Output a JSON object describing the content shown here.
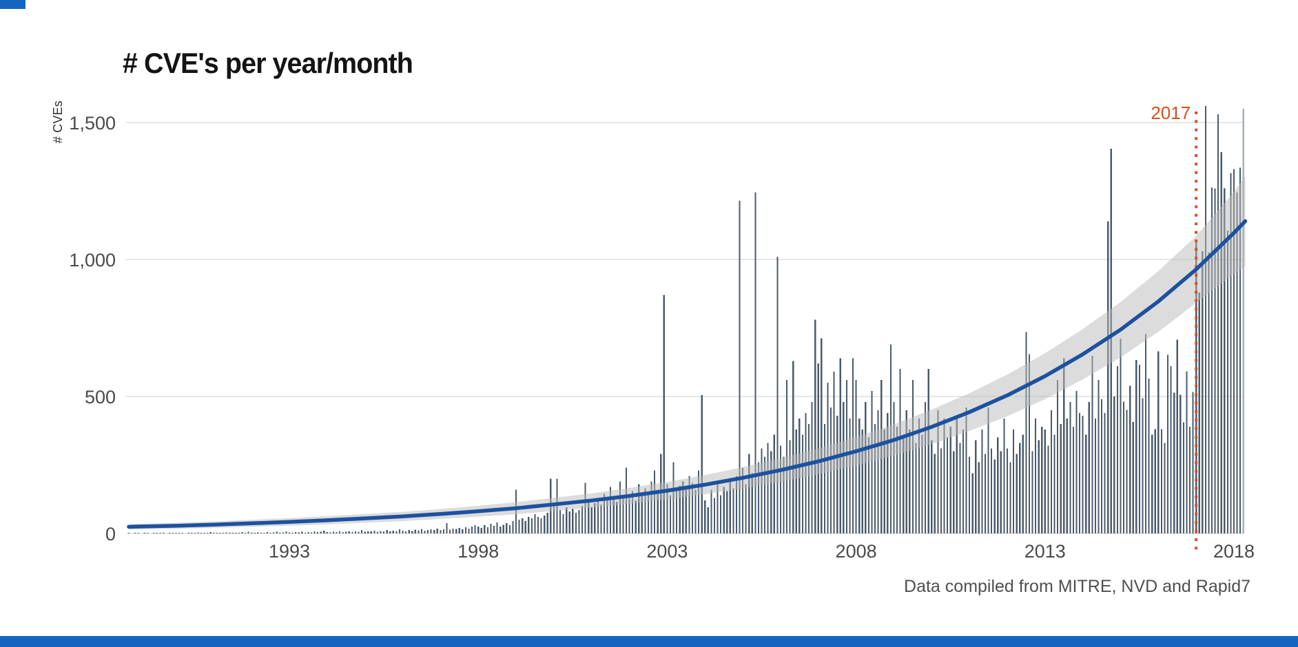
{
  "page": {
    "background": "#ffffff",
    "brand_color": "#1565c0"
  },
  "chart_data": {
    "type": "bar",
    "title": "# CVE's per year/month",
    "ylabel": "# CVEs",
    "xlabel": "",
    "caption": "Data compiled from MITRE, NVD and Rapid7",
    "grid": true,
    "legend_position": "none",
    "xlim": [
      1988.58,
      2018.45
    ],
    "ylim": [
      0,
      1580
    ],
    "x_tick_years": [
      1993,
      1998,
      2003,
      2008,
      2013,
      2018
    ],
    "y_ticks": [
      {
        "value": 0,
        "label": "0"
      },
      {
        "value": 500,
        "label": "500"
      },
      {
        "value": 1000,
        "label": "1,000"
      },
      {
        "value": 1500,
        "label": "1,500"
      }
    ],
    "grid_color": "#d8d8d8",
    "tick_label_color": "#4a4a4a",
    "bar_color": "#4a5a6b",
    "bar_partial_color": "#a5b1bb",
    "annotation": {
      "label": "2017",
      "year": 2017,
      "color": "#d94f1e",
      "style": "vertical-dotted-line"
    },
    "bars": {
      "unit": "CVEs per month",
      "start": "1988-10",
      "end": "2018-04",
      "note": "last value is a partial month drawn in lighter color",
      "values": [
        1,
        0,
        2,
        1,
        0,
        1,
        2,
        0,
        1,
        1,
        2,
        1,
        0,
        2,
        3,
        1,
        2,
        1,
        0,
        3,
        2,
        1,
        4,
        2,
        1,
        2,
        5,
        2,
        1,
        3,
        2,
        4,
        1,
        2,
        3,
        2,
        5,
        3,
        6,
        3,
        2,
        4,
        3,
        2,
        5,
        3,
        4,
        6,
        3,
        4,
        8,
        4,
        3,
        5,
        4,
        6,
        3,
        5,
        4,
        7,
        5,
        6,
        10,
        5,
        4,
        6,
        5,
        8,
        4,
        6,
        7,
        5,
        8,
        6,
        12,
        6,
        8,
        7,
        10,
        6,
        9,
        8,
        12,
        7,
        10,
        9,
        15,
        10,
        8,
        12,
        9,
        14,
        11,
        16,
        10,
        13,
        15,
        12,
        18,
        12,
        15,
        38,
        14,
        18,
        16,
        20,
        15,
        22,
        18,
        25,
        30,
        25,
        20,
        30,
        22,
        35,
        28,
        40,
        25,
        32,
        38,
        30,
        45,
        160,
        50,
        55,
        45,
        60,
        55,
        70,
        60,
        55,
        65,
        75,
        200,
        110,
        200,
        85,
        70,
        95,
        80,
        90,
        75,
        85,
        100,
        185,
        120,
        95,
        110,
        130,
        105,
        145,
        120,
        170,
        135,
        115,
        190,
        140,
        240,
        130,
        155,
        120,
        180,
        145,
        165,
        140,
        190,
        230,
        160,
        290,
        870,
        180,
        140,
        260,
        155,
        175,
        190,
        165,
        210,
        185,
        160,
        230,
        505,
        120,
        95,
        160,
        130,
        185,
        140,
        170,
        155,
        190,
        165,
        210,
        1215,
        240,
        180,
        290,
        220,
        1245,
        260,
        310,
        280,
        330,
        300,
        360,
        1010,
        320,
        280,
        560,
        340,
        630,
        380,
        420,
        360,
        440,
        400,
        480,
        780,
        620,
        712,
        400,
        550,
        460,
        590,
        430,
        640,
        480,
        560,
        420,
        640,
        560,
        420,
        380,
        480,
        350,
        520,
        400,
        450,
        560,
        380,
        440,
        690,
        480,
        390,
        600,
        350,
        450,
        380,
        560,
        330,
        420,
        360,
        480,
        600,
        340,
        290,
        450,
        310,
        420,
        350,
        390,
        300,
        430,
        330,
        380,
        460,
        280,
        220,
        340,
        260,
        380,
        290,
        460,
        310,
        270,
        350,
        300,
        420,
        310,
        260,
        380,
        290,
        330,
        360,
        735,
        655,
        300,
        420,
        340,
        390,
        380,
        320,
        450,
        360,
        560,
        400,
        640,
        420,
        480,
        390,
        520,
        440,
        430,
        360,
        480,
        648,
        420,
        560,
        490,
        440,
        1140,
        1405,
        500,
        610,
        711,
        481,
        451,
        539,
        407,
        633,
        615,
        494,
        727,
        565,
        360,
        381,
        665,
        381,
        331,
        652,
        610,
        514,
        707,
        506,
        406,
        592,
        389,
        516,
        1065,
        880,
        1030,
        1560,
        1026,
        1262,
        1259,
        1530,
        1392,
        1260,
        1105,
        1315,
        1330,
        1245,
        1335,
        1550
      ]
    },
    "trend": {
      "label": "exponential trend with confidence band",
      "line_color": "#1c519f",
      "band_color": "#b9b9b9",
      "band_opacity": 0.5,
      "years": [
        1988.75,
        1989,
        1990,
        1991,
        1992,
        1993,
        1994,
        1995,
        1996,
        1997,
        1998,
        1999,
        2000,
        2001,
        2002,
        2003,
        2004,
        2005,
        2006,
        2007,
        2008,
        2009,
        2010,
        2011,
        2012,
        2013,
        2014,
        2015,
        2016,
        2017,
        2018,
        2018.3
      ],
      "values": [
        24,
        25,
        28,
        32,
        37,
        42,
        48,
        55,
        62,
        71,
        81,
        92,
        106,
        120,
        137,
        156,
        178,
        203,
        231,
        263,
        300,
        341,
        389,
        443,
        504,
        574,
        654,
        744,
        847,
        964,
        1097,
        1140
      ],
      "band_half_width": [
        10,
        10,
        11,
        12,
        13,
        14,
        15,
        16,
        17,
        18,
        20,
        22,
        24,
        26,
        29,
        32,
        35,
        39,
        43,
        47,
        52,
        57,
        63,
        69,
        76,
        84,
        92,
        101,
        111,
        122,
        150,
        165
      ]
    }
  }
}
